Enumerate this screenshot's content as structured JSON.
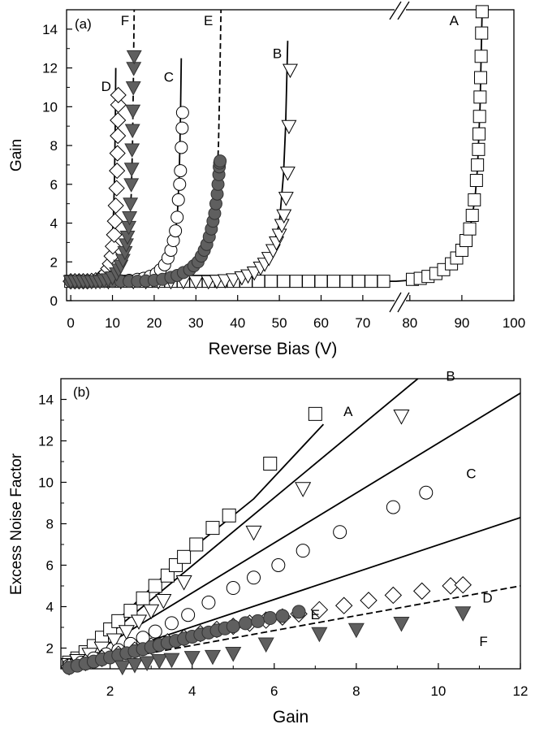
{
  "chart_data": [
    {
      "panel_label": "(a)",
      "type": "scatter",
      "xlabel": "Reverse Bias (V)",
      "ylabel": "Gain",
      "xlim_left": [
        -1,
        78
      ],
      "xlim_right": [
        78,
        100
      ],
      "x_break": "78 / 80",
      "ylim": [
        0,
        15
      ],
      "x_ticks": [
        {
          "value": 0,
          "label": "0"
        },
        {
          "value": 10,
          "label": "10"
        },
        {
          "value": 20,
          "label": "20"
        },
        {
          "value": 30,
          "label": "30"
        },
        {
          "value": 40,
          "label": "40"
        },
        {
          "value": 50,
          "label": "50"
        },
        {
          "value": 60,
          "label": "60"
        },
        {
          "value": 70,
          "label": "70"
        },
        {
          "value": 80,
          "label": "80"
        },
        {
          "value": 90,
          "label": "90"
        },
        {
          "value": 100,
          "label": "100"
        }
      ],
      "y_ticks": [
        {
          "value": 0,
          "label": "0"
        },
        {
          "value": 2,
          "label": "2"
        },
        {
          "value": 4,
          "label": "4"
        },
        {
          "value": 6,
          "label": "6"
        },
        {
          "value": 8,
          "label": "8"
        },
        {
          "value": 10,
          "label": "10"
        },
        {
          "value": 12,
          "label": "12"
        },
        {
          "value": 14,
          "label": "14"
        }
      ],
      "series": [
        {
          "name": "A",
          "marker": "square",
          "fill": "#ffffff",
          "line": "solid",
          "x": [
            0,
            3,
            6,
            9,
            12,
            15,
            18,
            21,
            24,
            27,
            30,
            33,
            36,
            39,
            42,
            45,
            48,
            51,
            54,
            57,
            60,
            63,
            66,
            69,
            72,
            75,
            80.5,
            82,
            83.5,
            85,
            86.5,
            88,
            89,
            90,
            90.8,
            91.5,
            92,
            92.4,
            92.8,
            93,
            93.2,
            93.3,
            93.4,
            93.5,
            93.6,
            93.7,
            93.8,
            93.9
          ],
          "y": [
            1,
            1,
            1,
            1,
            1,
            1,
            1,
            1,
            1,
            1,
            1,
            1,
            1,
            1,
            1,
            1,
            1,
            1,
            1,
            1,
            1,
            1,
            1,
            1,
            1,
            1,
            1.1,
            1.15,
            1.25,
            1.4,
            1.6,
            1.9,
            2.2,
            2.6,
            3.1,
            3.7,
            4.4,
            5.2,
            6.2,
            7,
            7.8,
            8.6,
            9.5,
            10.5,
            11.5,
            12.6,
            13.8,
            14.9
          ],
          "fit_x": [
            0,
            20,
            40,
            60,
            78,
            80,
            84,
            88,
            90,
            91.5,
            92.5,
            93,
            93.5,
            93.9
          ],
          "fit_y": [
            1,
            1,
            1,
            1,
            1,
            1.05,
            1.25,
            1.8,
            2.6,
            3.6,
            5.2,
            6.8,
            10,
            15
          ]
        },
        {
          "name": "B",
          "marker": "triangle-down",
          "fill": "#ffffff",
          "line": "solid",
          "x": [
            0,
            3,
            6,
            9,
            12,
            15,
            18,
            21,
            24,
            27,
            30,
            33,
            35,
            37,
            39,
            41,
            42.5,
            44,
            45.5,
            46.5,
            47.5,
            48.5,
            49.3,
            50,
            50.6,
            51.1,
            51.6,
            52,
            52.3,
            52.6,
            52.9,
            53.2
          ],
          "y": [
            1,
            1,
            1,
            1,
            1,
            1,
            1,
            1,
            1,
            1,
            1,
            1,
            1.02,
            1.05,
            1.1,
            1.2,
            1.3,
            1.45,
            1.7,
            1.9,
            2.2,
            2.6,
            3,
            3.4,
            3.9,
            4.4,
            5.3,
            6.6,
            9,
            11.9,
            null,
            null
          ],
          "fit_x": [
            0,
            20,
            30,
            38,
            44,
            48,
            50,
            51,
            51.5,
            52
          ],
          "fit_y": [
            1,
            1,
            1.03,
            1.15,
            1.5,
            2.4,
            4,
            6.5,
            9,
            13.4
          ]
        },
        {
          "name": "C",
          "marker": "circle",
          "fill": "#ffffff",
          "line": "solid",
          "x": [
            0,
            2,
            4,
            6,
            8,
            10,
            12,
            14,
            16,
            17.5,
            19,
            20.5,
            21.5,
            22.5,
            23.3,
            24,
            24.6,
            25.1,
            25.5,
            25.8,
            26.1,
            26.3,
            26.5,
            26.7,
            26.8
          ],
          "y": [
            1,
            1,
            1,
            1,
            1,
            1,
            1.02,
            1.05,
            1.1,
            1.15,
            1.25,
            1.4,
            1.6,
            1.85,
            2.2,
            2.6,
            3.1,
            3.6,
            4.3,
            5.2,
            6,
            6.7,
            7.9,
            8.9,
            9.7
          ],
          "fit_x": [
            0,
            10,
            16,
            20,
            23,
            24.5,
            25.5,
            26,
            26.3,
            26.5
          ],
          "fit_y": [
            1,
            1,
            1.1,
            1.35,
            2,
            2.8,
            4.2,
            6.5,
            9.5,
            12.5
          ]
        },
        {
          "name": "D",
          "marker": "diamond",
          "fill": "#ffffff",
          "line": "solid",
          "x": [
            0,
            1,
            2,
            3,
            4,
            5,
            6,
            7,
            8,
            8.5,
            9,
            9.4,
            9.8,
            10.1,
            10.4,
            10.6,
            10.8,
            11,
            11.1,
            11.2,
            11.3,
            11.3,
            11.4,
            11.4
          ],
          "y": [
            1,
            1,
            1,
            1,
            1,
            1.02,
            1.05,
            1.15,
            1.3,
            1.45,
            1.65,
            1.9,
            2.3,
            2.8,
            3.4,
            4.1,
            4.9,
            5.8,
            6.7,
            7.6,
            8.5,
            9.3,
            10.1,
            10.6
          ],
          "fit_x": [
            0,
            5,
            7,
            8.5,
            9.5,
            10,
            10.3,
            10.5,
            10.7,
            10.8
          ],
          "fit_y": [
            1,
            1,
            1.1,
            1.5,
            2.3,
            3.3,
            4.8,
            6.5,
            9.5,
            12
          ]
        },
        {
          "name": "E",
          "marker": "circle",
          "fill": "#5f5f5f",
          "line": "dashed",
          "x": [
            0,
            2,
            4,
            6,
            8,
            10,
            12,
            14,
            16,
            18,
            20,
            22,
            24,
            25.5,
            27,
            28.5,
            29.5,
            30.5,
            31.3,
            32,
            32.6,
            33.2,
            33.7,
            34.1,
            34.5,
            34.8,
            35.1,
            35.3,
            35.5,
            35.6,
            35.7,
            35.8
          ],
          "y": [
            1,
            1,
            1,
            1,
            1,
            1,
            1,
            1,
            1,
            1.02,
            1.05,
            1.1,
            1.2,
            1.3,
            1.45,
            1.6,
            1.8,
            2,
            2.3,
            2.6,
            2.9,
            3.3,
            3.7,
            4.1,
            4.5,
            5,
            5.5,
            6,
            6.5,
            6.9,
            7.1,
            7.2
          ],
          "fit_x": [
            0,
            15,
            22,
            27,
            30,
            32,
            33.5,
            34.5,
            35,
            35.4,
            35.7,
            36
          ],
          "fit_y": [
            1,
            1,
            1.1,
            1.4,
            1.9,
            2.5,
            3.5,
            4.8,
            6,
            8,
            11,
            15
          ]
        },
        {
          "name": "F",
          "marker": "triangle-down",
          "fill": "#5f5f5f",
          "line": "dashed",
          "x": [
            0,
            1,
            2,
            3,
            4,
            5,
            6,
            7,
            8,
            9,
            10,
            11,
            11.5,
            12,
            12.5,
            13,
            13.3,
            13.6,
            13.9,
            14.1,
            14.3,
            14.5,
            14.6,
            14.7,
            14.8,
            14.9,
            15,
            15.1,
            15.2
          ],
          "y": [
            1,
            1,
            1,
            1,
            1,
            1,
            1,
            1,
            1.05,
            1.1,
            1.2,
            1.4,
            1.6,
            1.8,
            2.1,
            2.5,
            2.9,
            3.3,
            3.8,
            4.3,
            5,
            6,
            6.8,
            7.8,
            8.8,
            9.8,
            11,
            12,
            12.6
          ],
          "fit_x": [
            0,
            8,
            11,
            13,
            14,
            14.5,
            14.8,
            15,
            15.1,
            15.2
          ],
          "fit_y": [
            1,
            1,
            1.3,
            2.3,
            3.7,
            5.5,
            8,
            11,
            13,
            15
          ]
        }
      ],
      "series_labels": [
        {
          "name": "A",
          "x": 88.5,
          "y": 14.2
        },
        {
          "name": "B",
          "x": 49.5,
          "y": 12.5
        },
        {
          "name": "C",
          "x": 23.5,
          "y": 11.3
        },
        {
          "name": "D",
          "x": 8.5,
          "y": 10.8
        },
        {
          "name": "E",
          "x": 33,
          "y": 14.2
        },
        {
          "name": "F",
          "x": 13,
          "y": 14.2
        }
      ]
    },
    {
      "panel_label": "(b)",
      "type": "scatter",
      "xlabel": "Gain",
      "ylabel": "Excess Noise Factor",
      "xlim": [
        0.8,
        12
      ],
      "ylim": [
        1,
        15
      ],
      "x_ticks": [
        {
          "value": 2,
          "label": "2"
        },
        {
          "value": 4,
          "label": "4"
        },
        {
          "value": 6,
          "label": "6"
        },
        {
          "value": 8,
          "label": "8"
        },
        {
          "value": 10,
          "label": "10"
        },
        {
          "value": 12,
          "label": "12"
        }
      ],
      "y_ticks": [
        {
          "value": 2,
          "label": "2"
        },
        {
          "value": 4,
          "label": "4"
        },
        {
          "value": 6,
          "label": "6"
        },
        {
          "value": 8,
          "label": "8"
        },
        {
          "value": 10,
          "label": "10"
        },
        {
          "value": 12,
          "label": "12"
        },
        {
          "value": 14,
          "label": "14"
        }
      ],
      "series": [
        {
          "name": "A",
          "marker": "square",
          "fill": "#ffffff",
          "line": "solid",
          "x": [
            1,
            1.2,
            1.4,
            1.6,
            1.8,
            2,
            2.2,
            2.5,
            2.8,
            3.1,
            3.4,
            3.6,
            3.8,
            4.1,
            4.5,
            4.9,
            5.9,
            7
          ],
          "y": [
            1.3,
            1.5,
            1.8,
            2.1,
            2.5,
            2.9,
            3.3,
            3.8,
            4.4,
            5,
            5.5,
            6,
            6.4,
            7,
            7.8,
            8.4,
            10.9,
            13.3
          ],
          "fit_x": [
            1,
            2,
            3,
            4,
            5.5,
            7.2
          ],
          "fit_y": [
            1.05,
            3,
            4.9,
            6.8,
            9.2,
            12.8
          ]
        },
        {
          "name": "B",
          "marker": "triangle-down",
          "fill": "#ffffff",
          "line": "solid",
          "x": [
            1,
            1.2,
            1.5,
            1.8,
            2.1,
            2.4,
            2.7,
            3,
            3.3,
            3.8,
            5.5,
            6.7,
            9.1
          ],
          "y": [
            1.2,
            1.4,
            1.7,
            2,
            2.4,
            2.8,
            3.3,
            3.8,
            4.3,
            5.2,
            7.6,
            9.7,
            13.2
          ],
          "fit_x": [
            1,
            9.5
          ],
          "fit_y": [
            1.05,
            15
          ]
        },
        {
          "name": "C",
          "marker": "circle",
          "fill": "#ffffff",
          "line": "solid",
          "x": [
            1,
            1.3,
            1.6,
            1.9,
            2.2,
            2.5,
            2.8,
            3.1,
            3.5,
            3.9,
            4.4,
            5,
            5.5,
            6.1,
            6.7,
            7.6,
            8.9,
            9.7
          ],
          "y": [
            1.15,
            1.3,
            1.5,
            1.7,
            1.9,
            2.2,
            2.5,
            2.8,
            3.2,
            3.6,
            4.2,
            4.9,
            5.4,
            6,
            6.7,
            7.6,
            8.8,
            9.5
          ],
          "fit_x": [
            1,
            12
          ],
          "fit_y": [
            1.05,
            14.3
          ]
        },
        {
          "name": "D",
          "marker": "diamond",
          "fill": "#ffffff",
          "line": "solid",
          "x": [
            1,
            1.4,
            1.8,
            2.2,
            2.6,
            3,
            3.4,
            3.8,
            4.2,
            4.6,
            5,
            5.4,
            5.8,
            6.2,
            6.6,
            7.1,
            7.7,
            8.3,
            8.9,
            9.6,
            10.3,
            10.6
          ],
          "y": [
            1.1,
            1.3,
            1.5,
            1.7,
            1.9,
            2.1,
            2.3,
            2.5,
            2.7,
            2.9,
            3.05,
            3.2,
            3.35,
            3.5,
            3.65,
            3.85,
            4.05,
            4.3,
            4.55,
            4.75,
            5,
            5.05
          ],
          "fit_x": [
            1,
            12
          ],
          "fit_y": [
            1.05,
            8.3
          ]
        },
        {
          "name": "E",
          "marker": "circle",
          "fill": "#5f5f5f",
          "line": "none",
          "x": [
            1,
            1.2,
            1.4,
            1.6,
            1.8,
            2,
            2.2,
            2.4,
            2.6,
            2.8,
            3,
            3.2,
            3.4,
            3.6,
            3.8,
            4,
            4.2,
            4.4,
            4.6,
            4.8,
            5,
            5.3,
            5.6,
            5.9,
            6.2,
            6.6
          ],
          "y": [
            1.05,
            1.15,
            1.25,
            1.35,
            1.45,
            1.55,
            1.65,
            1.75,
            1.85,
            1.95,
            2.05,
            2.15,
            2.25,
            2.35,
            2.45,
            2.55,
            2.65,
            2.75,
            2.85,
            2.95,
            3.05,
            3.2,
            3.3,
            3.45,
            3.55,
            3.75
          ],
          "fit_x": [],
          "fit_y": []
        },
        {
          "name": "F",
          "marker": "triangle-down",
          "fill": "#5f5f5f",
          "line": "dashed",
          "x": [
            2.3,
            2.6,
            2.9,
            3.2,
            3.5,
            4,
            4.5,
            5,
            5.8,
            7.1,
            8,
            9.1,
            10.6
          ],
          "y": [
            1.1,
            1.2,
            1.3,
            1.4,
            1.45,
            1.55,
            1.6,
            1.75,
            2.2,
            2.7,
            2.9,
            3.2,
            3.7
          ],
          "fit_x": [
            1,
            12
          ],
          "fit_y": [
            1.05,
            5
          ]
        }
      ],
      "series_labels": [
        {
          "name": "A",
          "x": 7.8,
          "y": 13.2
        },
        {
          "name": "B",
          "x": 10.3,
          "y": 14.9
        },
        {
          "name": "C",
          "x": 10.8,
          "y": 10.2
        },
        {
          "name": "D",
          "x": 11.2,
          "y": 4.2
        },
        {
          "name": "E",
          "x": 7.0,
          "y": 3.4
        },
        {
          "name": "F",
          "x": 11.1,
          "y": 2.1
        }
      ]
    }
  ]
}
